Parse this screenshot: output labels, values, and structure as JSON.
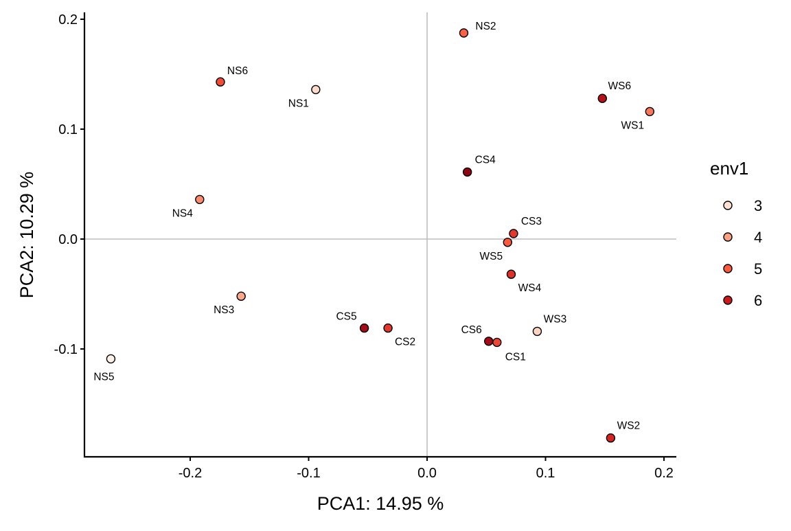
{
  "chart_data": {
    "type": "scatter",
    "xlabel": "PCA1:  14.95 %",
    "ylabel": "PCA2:  10.29 %",
    "xlim": [
      -0.29,
      0.21
    ],
    "ylim": [
      -0.198,
      0.206
    ],
    "xticks": [
      -0.2,
      -0.1,
      0.0,
      0.1,
      0.2
    ],
    "xtick_labels": [
      "-0.2",
      "-0.1",
      "0.0",
      "0.1",
      "0.2"
    ],
    "yticks": [
      -0.1,
      0.0,
      0.1,
      0.2
    ],
    "ytick_labels": [
      "-0.1",
      "0.0",
      "0.1",
      "0.2"
    ],
    "grid": false,
    "reference_lines": {
      "x": 0,
      "y": 0,
      "color": "#bebebe"
    },
    "legend": {
      "title": "env1",
      "placement": "right",
      "entries": [
        {
          "label": "3",
          "color": "#fee0d2"
        },
        {
          "label": "4",
          "color": "#fca082"
        },
        {
          "label": "5",
          "color": "#fb5a3c"
        },
        {
          "label": "6",
          "color": "#cb181d"
        }
      ]
    },
    "points": [
      {
        "label": "NS2",
        "x": 0.031,
        "y": 0.1875,
        "env1": 4.9
      },
      {
        "label": "NS6",
        "x": -0.1745,
        "y": 0.143,
        "env1": 5.2
      },
      {
        "label": "NS1",
        "x": -0.094,
        "y": 0.136,
        "env1": 3.1
      },
      {
        "label": "WS6",
        "x": 0.148,
        "y": 0.128,
        "env1": 6.3
      },
      {
        "label": "WS1",
        "x": 0.188,
        "y": 0.116,
        "env1": 4.6
      },
      {
        "label": "CS4",
        "x": 0.034,
        "y": 0.061,
        "env1": 6.8
      },
      {
        "label": "NS4",
        "x": -0.192,
        "y": 0.036,
        "env1": 4.3
      },
      {
        "label": "CS3",
        "x": 0.073,
        "y": 0.005,
        "env1": 5.5
      },
      {
        "label": "WS5",
        "x": 0.068,
        "y": -0.003,
        "env1": 5.0
      },
      {
        "label": "WS4",
        "x": 0.071,
        "y": -0.032,
        "env1": 5.6
      },
      {
        "label": "NS3",
        "x": -0.157,
        "y": -0.052,
        "env1": 3.9
      },
      {
        "label": "CS5",
        "x": -0.053,
        "y": -0.081,
        "env1": 6.5
      },
      {
        "label": "CS2",
        "x": -0.033,
        "y": -0.081,
        "env1": 5.5
      },
      {
        "label": "CS6",
        "x": 0.052,
        "y": -0.093,
        "env1": 6.5
      },
      {
        "label": "CS1",
        "x": 0.059,
        "y": -0.094,
        "env1": 5.3
      },
      {
        "label": "WS3",
        "x": 0.093,
        "y": -0.084,
        "env1": 3.2
      },
      {
        "label": "NS5",
        "x": -0.267,
        "y": -0.109,
        "env1": 2.9
      },
      {
        "label": "WS2",
        "x": 0.155,
        "y": -0.181,
        "env1": 5.8
      }
    ]
  }
}
